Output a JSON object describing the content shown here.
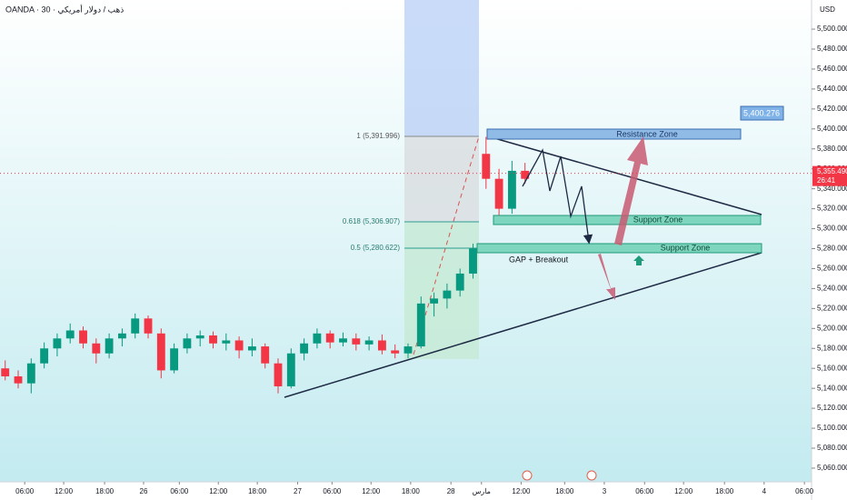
{
  "chart_data": {
    "type": "candlestick",
    "title": "OANDA · 30 · ذهب / دولار أمريكي",
    "y_axis_unit": "USD",
    "up_color": "#089981",
    "down_color": "#f23645",
    "x": [
      -3,
      -1,
      1,
      3,
      5,
      7,
      9,
      11,
      13,
      15,
      17,
      19,
      21,
      23,
      25,
      27,
      29,
      31,
      33,
      35,
      37,
      39,
      41,
      43,
      45,
      47,
      49,
      51,
      53,
      55,
      57,
      59,
      61,
      63,
      65,
      67,
      69,
      71,
      73,
      75,
      77
    ],
    "open": [
      5160,
      5152,
      5145,
      5165,
      5180,
      5190,
      5198,
      5185,
      5175,
      5190,
      5195,
      5210,
      5195,
      5158,
      5180,
      5190,
      5193,
      5185,
      5188,
      5178,
      5182,
      5165,
      5142,
      5175,
      5185,
      5195,
      5186,
      5190,
      5184,
      5188,
      5178,
      5175,
      5182,
      5225,
      5230,
      5238,
      5255,
      5375,
      5350,
      5320,
      5358
    ],
    "high": [
      5168,
      5158,
      5170,
      5186,
      5195,
      5205,
      5202,
      5190,
      5195,
      5200,
      5215,
      5213,
      5200,
      5185,
      5195,
      5198,
      5197,
      5195,
      5192,
      5190,
      5185,
      5170,
      5180,
      5190,
      5200,
      5198,
      5196,
      5195,
      5192,
      5194,
      5184,
      5185,
      5232,
      5236,
      5245,
      5260,
      5285,
      5392,
      5360,
      5368,
      5366
    ],
    "low": [
      5148,
      5140,
      5135,
      5160,
      5172,
      5185,
      5180,
      5165,
      5170,
      5182,
      5190,
      5190,
      5150,
      5155,
      5175,
      5182,
      5180,
      5178,
      5170,
      5172,
      5160,
      5135,
      5140,
      5168,
      5180,
      5180,
      5182,
      5178,
      5178,
      5174,
      5170,
      5170,
      5180,
      5212,
      5220,
      5232,
      5250,
      5340,
      5305,
      5315,
      5345
    ],
    "close": [
      5152,
      5145,
      5165,
      5180,
      5190,
      5198,
      5185,
      5175,
      5190,
      5195,
      5210,
      5195,
      5158,
      5180,
      5190,
      5193,
      5185,
      5188,
      5178,
      5182,
      5165,
      5142,
      5175,
      5185,
      5195,
      5186,
      5190,
      5184,
      5188,
      5178,
      5175,
      5182,
      5225,
      5230,
      5238,
      5255,
      5280,
      5350,
      5320,
      5358,
      5350
    ],
    "xlim": [
      -3.8,
      121.1
    ],
    "xticks": [
      {
        "value": 0,
        "label": "06:00"
      },
      {
        "value": 6,
        "label": "12:00"
      },
      {
        "value": 12.3,
        "label": "18:00"
      },
      {
        "value": 18.3,
        "label": "26"
      },
      {
        "value": 23.8,
        "label": "06:00"
      },
      {
        "value": 29.8,
        "label": "12:00"
      },
      {
        "value": 35.8,
        "label": "18:00"
      },
      {
        "value": 42,
        "label": "27"
      },
      {
        "value": 47.3,
        "label": "06:00"
      },
      {
        "value": 53.3,
        "label": "12:00"
      },
      {
        "value": 59.4,
        "label": "18:00"
      },
      {
        "value": 65.6,
        "label": "28"
      },
      {
        "value": 70.3,
        "label": "مارس"
      },
      {
        "value": 76.4,
        "label": "12:00"
      },
      {
        "value": 83.1,
        "label": "18:00"
      },
      {
        "value": 89.2,
        "label": "3"
      },
      {
        "value": 95.4,
        "label": "06:00"
      },
      {
        "value": 101.4,
        "label": "12:00"
      },
      {
        "value": 107.7,
        "label": "18:00"
      },
      {
        "value": 113.8,
        "label": "4"
      },
      {
        "value": 120,
        "label": "06:00"
      }
    ],
    "ylim": [
      5046.3,
      5529.2
    ],
    "yticks": [
      {
        "value": 5060,
        "label": "5,060.000"
      },
      {
        "value": 5080,
        "label": "5,080.000"
      },
      {
        "value": 5100,
        "label": "5,100.000"
      },
      {
        "value": 5120,
        "label": "5,120.000"
      },
      {
        "value": 5140,
        "label": "5,140.000"
      },
      {
        "value": 5160,
        "label": "5,160.000"
      },
      {
        "value": 5180,
        "label": "5,180.000"
      },
      {
        "value": 5200,
        "label": "5,200.000"
      },
      {
        "value": 5220,
        "label": "5,220.000"
      },
      {
        "value": 5240,
        "label": "5,240.000"
      },
      {
        "value": 5260,
        "label": "5,260.000"
      },
      {
        "value": 5280,
        "label": "5,280.000"
      },
      {
        "value": 5300,
        "label": "5,300.000"
      },
      {
        "value": 5320,
        "label": "5,320.000"
      },
      {
        "value": 5340,
        "label": "5,340.000"
      },
      {
        "value": 5360,
        "label": "5,360.000"
      },
      {
        "value": 5380,
        "label": "5,380.000"
      },
      {
        "value": 5400,
        "label": "5,400.000"
      },
      {
        "value": 5420,
        "label": "5,420.000"
      },
      {
        "value": 5440,
        "label": "5,440.000"
      },
      {
        "value": 5460,
        "label": "5,460.000"
      },
      {
        "value": 5480,
        "label": "5,480.000"
      },
      {
        "value": 5500,
        "label": "5,500.000"
      }
    ],
    "last_price": {
      "value": 5355.49,
      "label": "5,355.490"
    },
    "countdown": "26:41",
    "annotations": {
      "fib_1": "1 (5,391.996)",
      "fib_0618": "0.618 (5,306.907)",
      "fib_05": "0.5 (5,280.622)",
      "target": "5,400.276",
      "resistance": "Resistance Zone",
      "support_1": "Support Zone",
      "support_2": "Support Zone",
      "gap": "GAP + Breakout"
    }
  }
}
